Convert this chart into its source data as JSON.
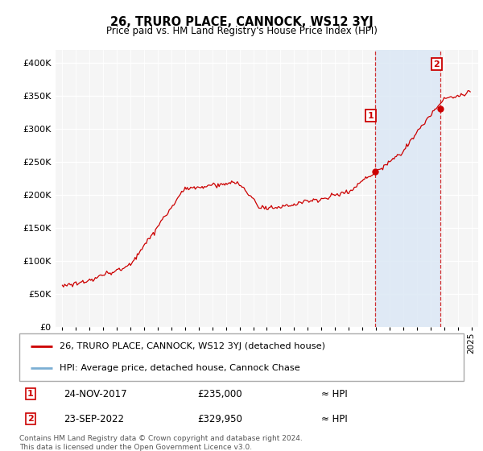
{
  "title": "26, TRURO PLACE, CANNOCK, WS12 3YJ",
  "subtitle": "Price paid vs. HM Land Registry's House Price Index (HPI)",
  "line1_label": "26, TRURO PLACE, CANNOCK, WS12 3YJ (detached house)",
  "line2_label": "HPI: Average price, detached house, Cannock Chase",
  "line_color": "#cc0000",
  "shaded_color": "#dce8f5",
  "annotation1_date": "24-NOV-2017",
  "annotation1_price": "£235,000",
  "annotation1_hpi": "≈ HPI",
  "annotation2_date": "23-SEP-2022",
  "annotation2_price": "£329,950",
  "annotation2_hpi": "≈ HPI",
  "footer": "Contains HM Land Registry data © Crown copyright and database right 2024.\nThis data is licensed under the Open Government Licence v3.0.",
  "ylim": [
    0,
    420000
  ],
  "yticks": [
    0,
    50000,
    100000,
    150000,
    200000,
    250000,
    300000,
    350000,
    400000
  ],
  "plot_bg": "#e8e8e8",
  "t1": 2017.9167,
  "t2": 2022.75,
  "p1": 235000,
  "p2": 329950
}
